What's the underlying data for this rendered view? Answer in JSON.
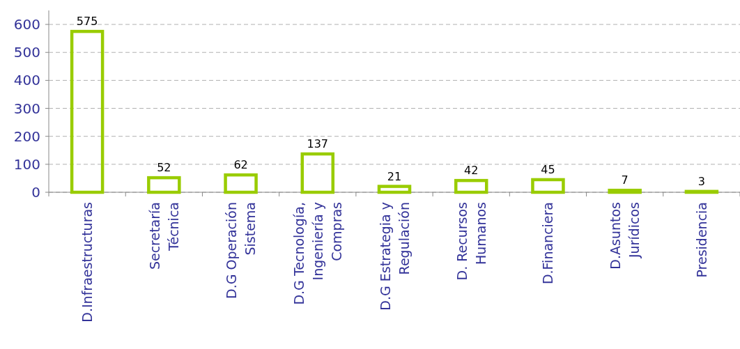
{
  "chart_data": {
    "type": "bar",
    "categories": [
      "D.Infraestructuras",
      "Secretaría Técnica",
      "D.G Operación Sistema",
      "D.G Tecnología, Ingeniería y Compras",
      "D.G Estrategia y Regulación",
      "D. Recursos Humanos",
      "D.Financiera",
      "D.Asuntos Jurídicos",
      "Presidencia"
    ],
    "values": [
      575,
      52,
      62,
      137,
      21,
      42,
      45,
      7,
      3
    ],
    "color": "#99cc00",
    "ylim": [
      0,
      650
    ],
    "yticks": [
      0,
      100,
      200,
      300,
      400,
      500,
      600
    ],
    "grid": "y",
    "data_labels": true
  }
}
